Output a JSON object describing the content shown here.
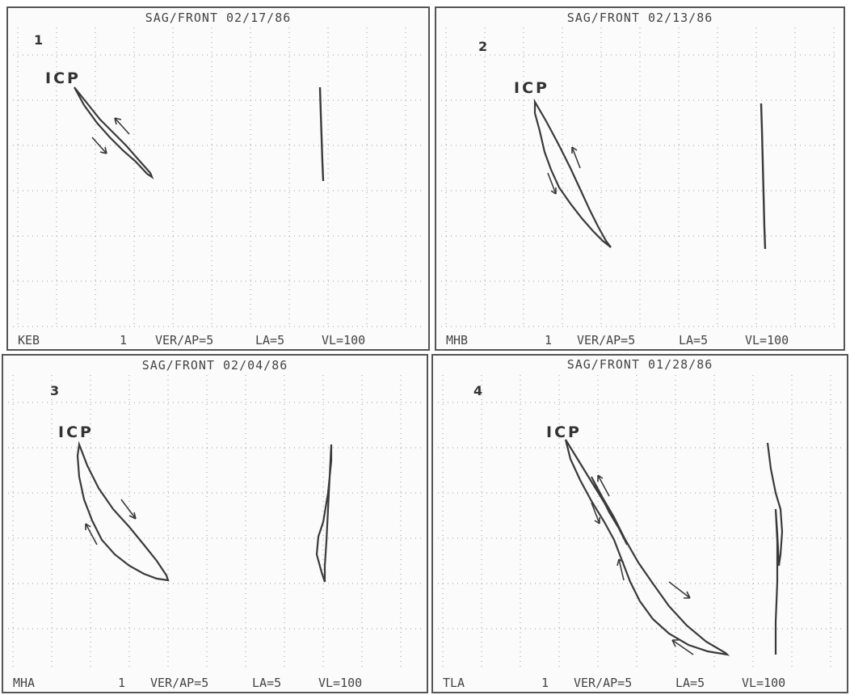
{
  "panels": [
    {
      "title": "SAG/FRONT 02/17/86",
      "number": "1",
      "icp_label": "ICP",
      "subject": "KEB",
      "run": "1",
      "ver_ap": "VER/AP=5",
      "la": "LA=5",
      "vl": "VL=100"
    },
    {
      "title": "SAG/FRONT 02/13/86",
      "number": "2",
      "icp_label": "ICP",
      "subject": "MHB",
      "run": "1",
      "ver_ap": "VER/AP=5",
      "la": "LA=5",
      "vl": "VL=100"
    },
    {
      "title": "SAG/FRONT 02/04/86",
      "number": "3",
      "icp_label": "ICP",
      "subject": "MHA",
      "run": "1",
      "ver_ap": "VER/AP=5",
      "la": "LA=5",
      "vl": "VL=100"
    },
    {
      "title": "SAG/FRONT 01/28/86",
      "number": "4",
      "icp_label": "ICP",
      "subject": "TLA",
      "run": "1",
      "ver_ap": "VER/AP=5",
      "la": "LA=5",
      "vl": "VL=100"
    }
  ],
  "colors": {
    "trace": "#3a3a3a",
    "grid": "#9a9a9a",
    "border": "#555555"
  }
}
